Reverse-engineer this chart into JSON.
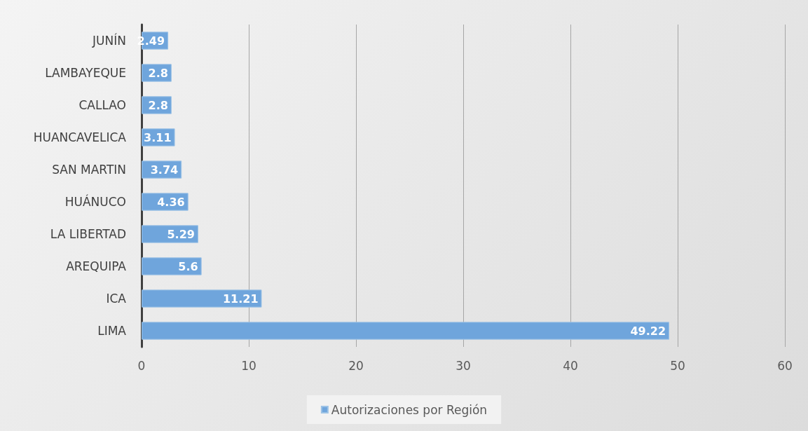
{
  "chart_data": {
    "type": "bar",
    "orientation": "horizontal",
    "categories": [
      "JUNÍN",
      "LAMBAYEQUE",
      "CALLAO",
      "HUANCAVELICA",
      "SAN MARTIN",
      "HUÁNUCO",
      "LA LIBERTAD",
      "AREQUIPA",
      "ICA",
      "LIMA"
    ],
    "series": [
      {
        "name": "Autorizaciones por Región",
        "color": "#6fa5dc",
        "values": [
          2.49,
          2.8,
          2.8,
          3.11,
          3.74,
          4.36,
          5.29,
          5.6,
          11.21,
          49.22
        ]
      }
    ],
    "xlim": [
      0,
      60
    ],
    "xticks": [
      0,
      10,
      20,
      30,
      40,
      50,
      60
    ],
    "grid": "x",
    "legend": "bottom",
    "data_labels": true
  }
}
